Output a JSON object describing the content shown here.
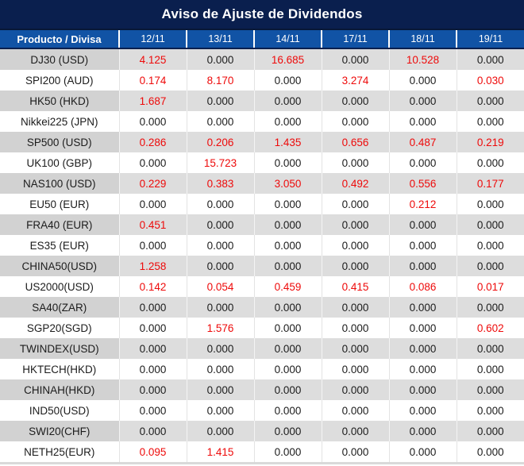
{
  "title": "Aviso de Ajuste de Dividendos",
  "colors": {
    "title_bg": "#0A1F4E",
    "header_bg": "#1153A5",
    "highlight_red": "#EE0A0A",
    "row_gray_label": "#D2D2D2",
    "row_gray_value": "#DDDDDD",
    "row_white": "#FFFFFF",
    "header_text": "#FFFFFF",
    "body_text": "#1C1C1C"
  },
  "chart_data": {
    "type": "table",
    "title": "Aviso de Ajuste de Dividendos",
    "product_header": "Producto / Divisa",
    "date_columns": [
      "12/11",
      "13/11",
      "14/11",
      "17/11",
      "18/11",
      "19/11"
    ],
    "rows": [
      {
        "product": "DJ30 (USD)",
        "values": [
          "4.125",
          "0.000",
          "16.685",
          "0.000",
          "10.528",
          "0.000"
        ],
        "highlight": [
          true,
          false,
          true,
          false,
          true,
          false
        ]
      },
      {
        "product": "SPI200 (AUD)",
        "values": [
          "0.174",
          "8.170",
          "0.000",
          "3.274",
          "0.000",
          "0.030"
        ],
        "highlight": [
          true,
          true,
          false,
          true,
          false,
          true
        ]
      },
      {
        "product": "HK50 (HKD)",
        "values": [
          "1.687",
          "0.000",
          "0.000",
          "0.000",
          "0.000",
          "0.000"
        ],
        "highlight": [
          true,
          false,
          false,
          false,
          false,
          false
        ]
      },
      {
        "product": "Nikkei225 (JPN)",
        "values": [
          "0.000",
          "0.000",
          "0.000",
          "0.000",
          "0.000",
          "0.000"
        ],
        "highlight": [
          false,
          false,
          false,
          false,
          false,
          false
        ]
      },
      {
        "product": "SP500 (USD)",
        "values": [
          "0.286",
          "0.206",
          "1.435",
          "0.656",
          "0.487",
          "0.219"
        ],
        "highlight": [
          true,
          true,
          true,
          true,
          true,
          true
        ]
      },
      {
        "product": "UK100 (GBP)",
        "values": [
          "0.000",
          "15.723",
          "0.000",
          "0.000",
          "0.000",
          "0.000"
        ],
        "highlight": [
          false,
          true,
          false,
          false,
          false,
          false
        ]
      },
      {
        "product": "NAS100 (USD)",
        "values": [
          "0.229",
          "0.383",
          "3.050",
          "0.492",
          "0.556",
          "0.177"
        ],
        "highlight": [
          true,
          true,
          true,
          true,
          true,
          true
        ]
      },
      {
        "product": "EU50 (EUR)",
        "values": [
          "0.000",
          "0.000",
          "0.000",
          "0.000",
          "0.212",
          "0.000"
        ],
        "highlight": [
          false,
          false,
          false,
          false,
          true,
          false
        ]
      },
      {
        "product": "FRA40 (EUR)",
        "values": [
          "0.451",
          "0.000",
          "0.000",
          "0.000",
          "0.000",
          "0.000"
        ],
        "highlight": [
          true,
          false,
          false,
          false,
          false,
          false
        ]
      },
      {
        "product": "ES35 (EUR)",
        "values": [
          "0.000",
          "0.000",
          "0.000",
          "0.000",
          "0.000",
          "0.000"
        ],
        "highlight": [
          false,
          false,
          false,
          false,
          false,
          false
        ]
      },
      {
        "product": "CHINA50(USD)",
        "values": [
          "1.258",
          "0.000",
          "0.000",
          "0.000",
          "0.000",
          "0.000"
        ],
        "highlight": [
          true,
          false,
          false,
          false,
          false,
          false
        ]
      },
      {
        "product": "US2000(USD)",
        "values": [
          "0.142",
          "0.054",
          "0.459",
          "0.415",
          "0.086",
          "0.017"
        ],
        "highlight": [
          true,
          true,
          true,
          true,
          true,
          true
        ]
      },
      {
        "product": "SA40(ZAR)",
        "values": [
          "0.000",
          "0.000",
          "0.000",
          "0.000",
          "0.000",
          "0.000"
        ],
        "highlight": [
          false,
          false,
          false,
          false,
          false,
          false
        ]
      },
      {
        "product": "SGP20(SGD)",
        "values": [
          "0.000",
          "1.576",
          "0.000",
          "0.000",
          "0.000",
          "0.602"
        ],
        "highlight": [
          false,
          true,
          false,
          false,
          false,
          true
        ]
      },
      {
        "product": "TWINDEX(USD)",
        "values": [
          "0.000",
          "0.000",
          "0.000",
          "0.000",
          "0.000",
          "0.000"
        ],
        "highlight": [
          false,
          false,
          false,
          false,
          false,
          false
        ]
      },
      {
        "product": "HKTECH(HKD)",
        "values": [
          "0.000",
          "0.000",
          "0.000",
          "0.000",
          "0.000",
          "0.000"
        ],
        "highlight": [
          false,
          false,
          false,
          false,
          false,
          false
        ]
      },
      {
        "product": "CHINAH(HKD)",
        "values": [
          "0.000",
          "0.000",
          "0.000",
          "0.000",
          "0.000",
          "0.000"
        ],
        "highlight": [
          false,
          false,
          false,
          false,
          false,
          false
        ]
      },
      {
        "product": "IND50(USD)",
        "values": [
          "0.000",
          "0.000",
          "0.000",
          "0.000",
          "0.000",
          "0.000"
        ],
        "highlight": [
          false,
          false,
          false,
          false,
          false,
          false
        ]
      },
      {
        "product": "SWI20(CHF)",
        "values": [
          "0.000",
          "0.000",
          "0.000",
          "0.000",
          "0.000",
          "0.000"
        ],
        "highlight": [
          false,
          false,
          false,
          false,
          false,
          false
        ]
      },
      {
        "product": "NETH25(EUR)",
        "values": [
          "0.095",
          "1.415",
          "0.000",
          "0.000",
          "0.000",
          "0.000"
        ],
        "highlight": [
          true,
          true,
          false,
          false,
          false,
          false
        ]
      }
    ]
  }
}
